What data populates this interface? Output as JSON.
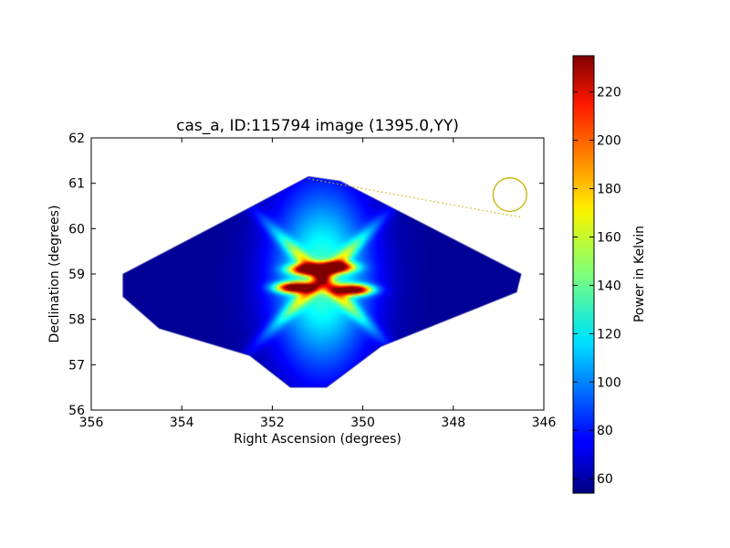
{
  "chart_data": {
    "type": "heatmap",
    "title": "cas_a, ID:115794 image (1395.0,YY)",
    "xlabel": "Right Ascension (degrees)",
    "ylabel": "Declination (degrees)",
    "xlim": [
      356,
      346
    ],
    "ylim": [
      56,
      62
    ],
    "x_ticks": [
      "356",
      "354",
      "352",
      "350",
      "348",
      "346"
    ],
    "y_ticks": [
      "62",
      "61",
      "60",
      "59",
      "58",
      "57",
      "56"
    ],
    "colorbar": {
      "label": "Power in Kelvin",
      "colormap": "jet",
      "range": [
        54,
        235
      ],
      "ticks": [
        "60",
        "80",
        "100",
        "120",
        "140",
        "160",
        "180",
        "200",
        "220"
      ]
    },
    "footprint_polygon": [
      [
        355.3,
        59.0
      ],
      [
        353.0,
        60.2
      ],
      [
        351.2,
        61.15
      ],
      [
        350.5,
        61.05
      ],
      [
        346.5,
        59.0
      ],
      [
        346.6,
        58.6
      ],
      [
        349.6,
        57.4
      ],
      [
        350.8,
        56.5
      ],
      [
        351.6,
        56.5
      ],
      [
        352.5,
        57.2
      ],
      [
        354.5,
        57.8
      ],
      [
        355.3,
        58.5
      ]
    ],
    "background_level": 58,
    "sources": [
      {
        "ra": 351.5,
        "dec": 58.7,
        "peak": 228
      },
      {
        "ra": 350.2,
        "dec": 58.65,
        "peak": 222
      },
      {
        "ra": 351.2,
        "dec": 59.1,
        "peak": 210
      },
      {
        "ra": 350.6,
        "dec": 59.15,
        "peak": 205
      }
    ],
    "halo": {
      "ra": 350.9,
      "dec": 58.9,
      "peak": 135
    },
    "beam": {
      "ra": 346.75,
      "dec": 60.75,
      "radius_deg": 0.37,
      "color": "#c8b400"
    },
    "beam_leader": [
      [
        351.2,
        61.1
      ],
      [
        346.5,
        60.25
      ]
    ]
  }
}
